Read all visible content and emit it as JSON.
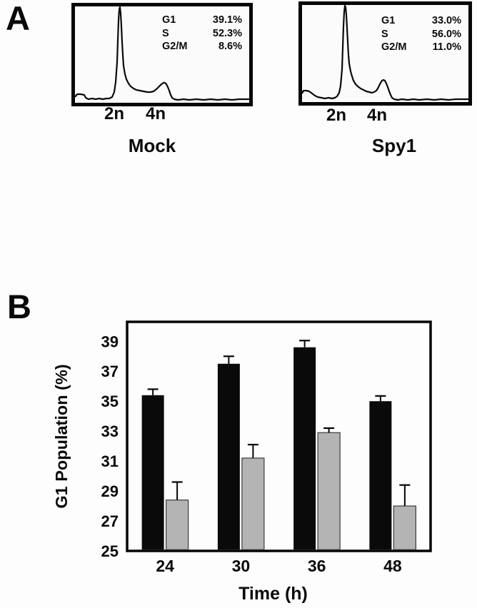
{
  "panels": {
    "a_label": "A",
    "b_label": "B"
  },
  "chart_data": [
    {
      "type": "histogram",
      "panel": "A",
      "title": "Mock",
      "xticks": [
        "2n",
        "4n"
      ],
      "stats": [
        {
          "phase": "G1",
          "value": "39.1%"
        },
        {
          "phase": "S",
          "value": "52.3%"
        },
        {
          "phase": "G2/M",
          "value": "8.6%"
        }
      ]
    },
    {
      "type": "histogram",
      "panel": "A",
      "title": "Spy1",
      "xticks": [
        "2n",
        "4n"
      ],
      "stats": [
        {
          "phase": "G1",
          "value": "33.0%"
        },
        {
          "phase": "S",
          "value": "56.0%"
        },
        {
          "phase": "G2/M",
          "value": "11.0%"
        }
      ]
    },
    {
      "type": "bar",
      "panel": "B",
      "categories": [
        "24",
        "30",
        "36",
        "48"
      ],
      "series": [
        {
          "name": "black",
          "color": "#0a0a0a",
          "values": [
            35.4,
            37.5,
            38.6,
            35.0
          ],
          "errors": [
            0.4,
            0.5,
            0.45,
            0.35
          ]
        },
        {
          "name": "gray",
          "color": "#b4b4b4",
          "values": [
            28.4,
            31.2,
            32.9,
            28.0
          ],
          "errors": [
            1.2,
            0.9,
            0.3,
            1.4
          ]
        }
      ],
      "xlabel": "Time (h)",
      "ylabel": "G1 Population (%)",
      "yticks": [
        39,
        37,
        35,
        33,
        31,
        29,
        27,
        25
      ],
      "ylim": [
        25,
        40.3
      ],
      "grid": false,
      "legend": "none",
      "frame": "box"
    }
  ]
}
